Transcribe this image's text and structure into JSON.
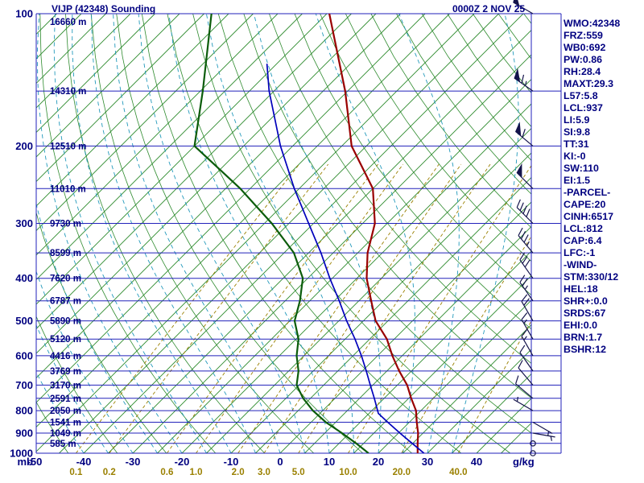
{
  "header": {
    "title": "VIJP (42348) Sounding",
    "datetime": "0000Z  2 NOV 25"
  },
  "axis": {
    "pressure_unit": "mb",
    "pressure_ticks": [
      100,
      200,
      300,
      400,
      500,
      600,
      700,
      800,
      900,
      1000
    ],
    "temp_ticks_degC": [
      -50,
      -40,
      -30,
      -20,
      -10,
      0,
      10,
      20,
      30,
      40
    ],
    "mixing_ratio_ticks_gkg": [
      "0.1",
      "0.2",
      "0.6",
      "1.0",
      "2.0",
      "3.0",
      "5.0",
      "10.0",
      "20.0",
      "40.0"
    ],
    "mixing_ratio_unit": "g/kg",
    "heights": [
      {
        "p": 100,
        "label": "16660 m"
      },
      {
        "p": 150,
        "label": "14310 m"
      },
      {
        "p": 200,
        "label": "12510 m"
      },
      {
        "p": 250,
        "label": "11010 m"
      },
      {
        "p": 300,
        "label": "9730 m"
      },
      {
        "p": 350,
        "label": "8599 m"
      },
      {
        "p": 400,
        "label": "7620 m"
      },
      {
        "p": 450,
        "label": "6787 m"
      },
      {
        "p": 500,
        "label": "5890 m"
      },
      {
        "p": 550,
        "label": "5120 m"
      },
      {
        "p": 600,
        "label": "4416 m"
      },
      {
        "p": 650,
        "label": "3769 m"
      },
      {
        "p": 700,
        "label": "3170 m"
      },
      {
        "p": 750,
        "label": "2591 m"
      },
      {
        "p": 800,
        "label": "2050 m"
      },
      {
        "p": 850,
        "label": "1541 m"
      },
      {
        "p": 900,
        "label": "1049 m"
      },
      {
        "p": 950,
        "label": "585 m"
      }
    ]
  },
  "chart_data": {
    "type": "line",
    "title": "Skew-T / Log-P atmospheric sounding",
    "y_scale": "log-pressure",
    "p_range_mb": [
      100,
      1000
    ],
    "t_range_degC_at_surface": [
      -50,
      40
    ],
    "grid": {
      "isotherm_step_degC": 5,
      "dry_adiabat_step_K": 10,
      "moist_adiabat_step_degC": 5,
      "pressure_line_step_mb": 50
    },
    "series": [
      {
        "name": "temperature",
        "color": "#990000",
        "points_p_T": [
          [
            1000,
            28
          ],
          [
            950,
            26
          ],
          [
            900,
            24
          ],
          [
            850,
            21.5
          ],
          [
            800,
            19
          ],
          [
            750,
            15.5
          ],
          [
            700,
            12
          ],
          [
            650,
            7.5
          ],
          [
            600,
            3
          ],
          [
            550,
            -1.5
          ],
          [
            500,
            -7.5
          ],
          [
            450,
            -12.5
          ],
          [
            400,
            -18
          ],
          [
            350,
            -23
          ],
          [
            300,
            -27.5
          ],
          [
            250,
            -35
          ],
          [
            200,
            -48
          ],
          [
            150,
            -60.5
          ],
          [
            100,
            -79.5
          ]
        ]
      },
      {
        "name": "dewpoint",
        "color": "#0b5c0b",
        "points_p_T": [
          [
            1000,
            18
          ],
          [
            950,
            13.5
          ],
          [
            900,
            8.5
          ],
          [
            850,
            3
          ],
          [
            800,
            -2
          ],
          [
            750,
            -6.5
          ],
          [
            700,
            -10.5
          ],
          [
            650,
            -13
          ],
          [
            600,
            -16.5
          ],
          [
            550,
            -19.5
          ],
          [
            500,
            -24
          ],
          [
            450,
            -27
          ],
          [
            400,
            -31
          ],
          [
            350,
            -38
          ],
          [
            300,
            -48.5
          ],
          [
            250,
            -62
          ],
          [
            200,
            -80
          ],
          [
            150,
            -89.5
          ],
          [
            100,
            -103.5
          ]
        ]
      },
      {
        "name": "parcel",
        "color": "#0000bb",
        "points_p_T": [
          [
            1000,
            29.3
          ],
          [
            950,
            24.9
          ],
          [
            900,
            20.3
          ],
          [
            850,
            15.6
          ],
          [
            812,
            11.9
          ],
          [
            750,
            8
          ],
          [
            700,
            4.5
          ],
          [
            650,
            0.8
          ],
          [
            600,
            -3.3
          ],
          [
            550,
            -8
          ],
          [
            500,
            -13.4
          ],
          [
            450,
            -19
          ],
          [
            400,
            -25.5
          ],
          [
            350,
            -32.5
          ],
          [
            300,
            -41
          ],
          [
            250,
            -51
          ],
          [
            200,
            -62.5
          ],
          [
            150,
            -76
          ],
          [
            130,
            -82
          ]
        ]
      }
    ],
    "winds": [
      {
        "p": 1000,
        "dir": 0,
        "spd_kt": 0
      },
      {
        "p": 950,
        "dir": 90,
        "spd_kt": 2
      },
      {
        "p": 900,
        "dir": 100,
        "spd_kt": 5
      },
      {
        "p": 850,
        "dir": 120,
        "spd_kt": 5
      },
      {
        "p": 800,
        "dir": 300,
        "spd_kt": 5
      },
      {
        "p": 750,
        "dir": 310,
        "spd_kt": 8
      },
      {
        "p": 700,
        "dir": 320,
        "spd_kt": 10
      },
      {
        "p": 650,
        "dir": 325,
        "spd_kt": 12
      },
      {
        "p": 600,
        "dir": 330,
        "spd_kt": 15
      },
      {
        "p": 550,
        "dir": 330,
        "spd_kt": 15
      },
      {
        "p": 500,
        "dir": 330,
        "spd_kt": 20
      },
      {
        "p": 450,
        "dir": 325,
        "spd_kt": 25
      },
      {
        "p": 400,
        "dir": 325,
        "spd_kt": 30
      },
      {
        "p": 350,
        "dir": 320,
        "spd_kt": 35
      },
      {
        "p": 300,
        "dir": 315,
        "spd_kt": 40
      },
      {
        "p": 250,
        "dir": 315,
        "spd_kt": 50
      },
      {
        "p": 200,
        "dir": 310,
        "spd_kt": 60
      },
      {
        "p": 150,
        "dir": 305,
        "spd_kt": 65
      },
      {
        "p": 100,
        "dir": 300,
        "spd_kt": 50
      }
    ]
  },
  "indices": [
    "WMO:42348",
    "FRZ:559",
    "WB0:692",
    "PW:0.86",
    "RH:28.4",
    "MAXT:29.3",
    "L57:5.8",
    "LCL:937",
    "LI:5.9",
    "SI:9.8",
    "TT:31",
    "KI:-0",
    "SW:110",
    "EI:1.5",
    "-PARCEL-",
    "CAPE:20",
    "CINH:6517",
    "LCL:812",
    "CAP:6.4",
    "LFC:-1",
    "-WIND-",
    "STM:330/12",
    "HEL:18",
    "SHR+:0.0",
    "SRDS:67",
    "EHI:0.0",
    "BRN:1.7",
    "BSHR:12"
  ],
  "colors": {
    "text": "#000080",
    "pressure_line": "#2222bb",
    "isotherm": "#2e8b2e",
    "moist_adiabat": "#2299bb",
    "mixing_ratio": "#9a8000",
    "temperature": "#990000",
    "dewpoint": "#0b5c0b",
    "parcel": "#0000bb",
    "barb": "#14144b"
  }
}
